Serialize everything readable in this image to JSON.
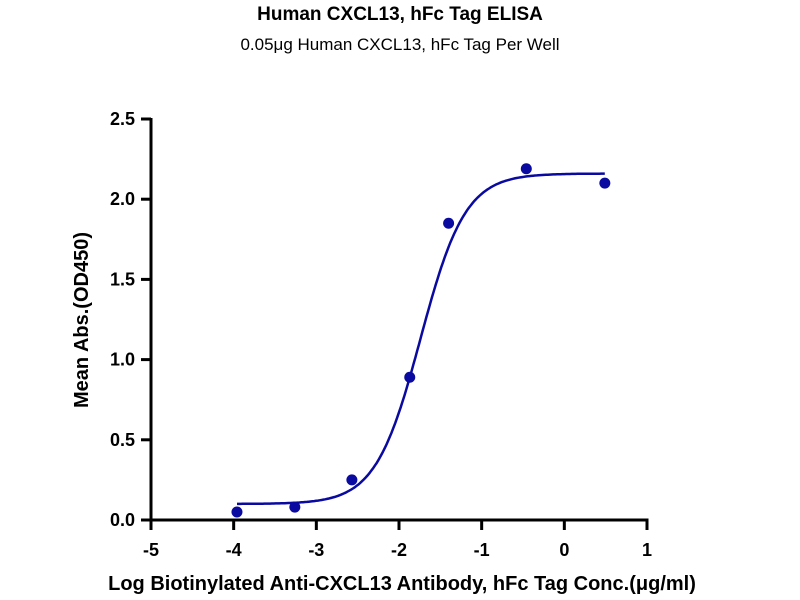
{
  "chart_data": {
    "type": "scatter",
    "title": "Human CXCL13, hFc Tag ELISA",
    "subtitle": "0.05μg Human CXCL13, hFc Tag Per Well",
    "xlabel": "Log Biotinylated Anti-CXCL13 Antibody, hFc Tag Conc.(μg/ml)",
    "ylabel": "Mean Abs.(OD450)",
    "xlim": [
      -5,
      1
    ],
    "ylim": [
      0,
      2.5
    ],
    "xticks": [
      "-5",
      "-4",
      "-3",
      "-2",
      "-1",
      "0",
      "1"
    ],
    "yticks": [
      "0.0",
      "0.5",
      "1.0",
      "1.5",
      "2.0",
      "2.5"
    ],
    "grid": false,
    "color": "#0a0aa0",
    "points": {
      "x": [
        -3.96,
        -3.26,
        -2.57,
        -1.87,
        -1.4,
        -0.46,
        0.49
      ],
      "y": [
        0.05,
        0.08,
        0.25,
        0.89,
        1.85,
        2.19,
        2.1
      ]
    },
    "fit": {
      "model": "4PL",
      "bottom": 0.1,
      "top": 2.16,
      "logEC50": -1.74,
      "hill": 1.6
    }
  }
}
